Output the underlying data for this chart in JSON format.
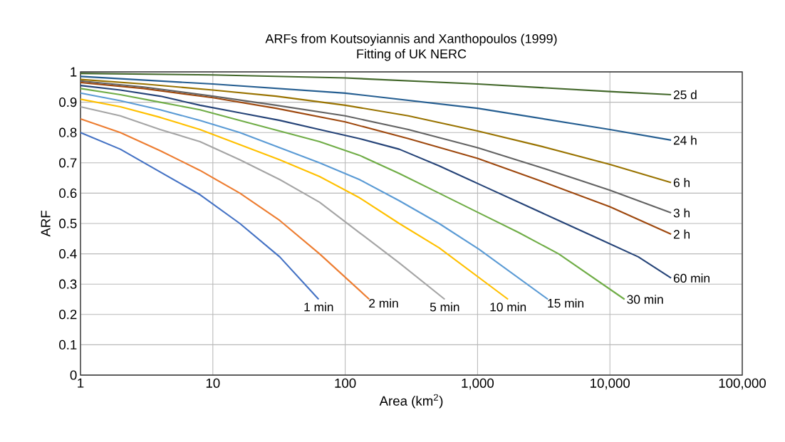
{
  "chart_data": {
    "type": "line",
    "title": "ARFs from Koutsoyiannis and Xanthopoulos (1999)",
    "subtitle": "Fitting of UK NERC",
    "xlabel": "Area (km$^{2}$)",
    "ylabel": "ARF",
    "log": "x",
    "grid": true,
    "legend": false,
    "marker": "none",
    "line_style": "solid",
    "xlim": [
      1,
      100000
    ],
    "ylim": [
      0,
      1
    ],
    "xticks": [
      1,
      10,
      100,
      {
        "value": 1000,
        "label": "1,000"
      },
      {
        "value": 10000,
        "label": "10,000"
      },
      {
        "value": 100000,
        "label": "100,000"
      }
    ],
    "yticks": [
      0,
      0.1,
      0.2,
      0.3,
      0.4,
      0.5,
      0.6,
      0.7,
      0.8,
      0.9,
      1
    ],
    "series": [
      {
        "name": "1 min",
        "color": "#4472c4",
        "x": [
          1,
          2,
          4,
          8,
          16,
          32,
          63
        ],
        "values": [
          0.8,
          0.745,
          0.67,
          0.595,
          0.5,
          0.39,
          0.25
        ]
      },
      {
        "name": "2 min",
        "color": "#ed7d31",
        "x": [
          1,
          2,
          4,
          8,
          16,
          32,
          64,
          152
        ],
        "values": [
          0.845,
          0.8,
          0.74,
          0.675,
          0.6,
          0.51,
          0.4,
          0.25
        ]
      },
      {
        "name": "5 min",
        "color": "#a5a5a5",
        "x": [
          1,
          2,
          4,
          8,
          16,
          32,
          64,
          128,
          256,
          565
        ],
        "values": [
          0.885,
          0.855,
          0.81,
          0.77,
          0.71,
          0.645,
          0.57,
          0.47,
          0.37,
          0.25
        ]
      },
      {
        "name": "10 min",
        "color": "#ffc000",
        "x": [
          1,
          2,
          4,
          8,
          16,
          32,
          64,
          128,
          256,
          512,
          1700
        ],
        "values": [
          0.91,
          0.885,
          0.85,
          0.81,
          0.76,
          0.71,
          0.655,
          0.585,
          0.5,
          0.42,
          0.25
        ]
      },
      {
        "name": "15 min",
        "color": "#5b9bd5",
        "x": [
          1,
          2,
          4,
          8,
          16,
          32,
          64,
          128,
          256,
          512,
          1024,
          3400
        ],
        "values": [
          0.93,
          0.905,
          0.875,
          0.84,
          0.8,
          0.75,
          0.7,
          0.645,
          0.575,
          0.5,
          0.415,
          0.25
        ]
      },
      {
        "name": "30 min",
        "color": "#70ad47",
        "x": [
          1,
          2,
          4,
          8,
          16,
          32,
          64,
          128,
          256,
          512,
          1024,
          2048,
          4096,
          12900
        ],
        "values": [
          0.945,
          0.925,
          0.9,
          0.875,
          0.84,
          0.805,
          0.77,
          0.725,
          0.665,
          0.6,
          0.535,
          0.47,
          0.4,
          0.25
        ]
      },
      {
        "name": "60 min",
        "color": "#264478",
        "x": [
          1,
          2,
          4,
          8,
          16,
          32,
          64,
          128,
          256,
          512,
          1024,
          2048,
          4096,
          8192,
          16384,
          29000
        ],
        "values": [
          0.955,
          0.94,
          0.92,
          0.89,
          0.865,
          0.84,
          0.81,
          0.78,
          0.745,
          0.69,
          0.63,
          0.57,
          0.51,
          0.45,
          0.39,
          0.32
        ]
      },
      {
        "name": "2 h",
        "color": "#9e480e",
        "x": [
          1,
          3,
          10,
          30,
          100,
          300,
          1000,
          3000,
          10000,
          29000
        ],
        "values": [
          0.965,
          0.945,
          0.915,
          0.88,
          0.835,
          0.78,
          0.715,
          0.64,
          0.555,
          0.465
        ]
      },
      {
        "name": "3 h",
        "color": "#636363",
        "x": [
          1,
          3,
          10,
          30,
          100,
          300,
          1000,
          3000,
          10000,
          29000
        ],
        "values": [
          0.97,
          0.95,
          0.92,
          0.89,
          0.855,
          0.81,
          0.75,
          0.685,
          0.61,
          0.535
        ]
      },
      {
        "name": "6 h",
        "color": "#997300",
        "x": [
          1,
          3,
          10,
          30,
          100,
          300,
          1000,
          3000,
          10000,
          29000
        ],
        "values": [
          0.975,
          0.96,
          0.94,
          0.92,
          0.89,
          0.855,
          0.805,
          0.755,
          0.695,
          0.635
        ]
      },
      {
        "name": "24 h",
        "color": "#255e91",
        "x": [
          1,
          10,
          100,
          1000,
          10000,
          29000
        ],
        "values": [
          0.985,
          0.96,
          0.93,
          0.88,
          0.81,
          0.775
        ]
      },
      {
        "name": "25 d",
        "color": "#43682b",
        "x": [
          1,
          10,
          100,
          1000,
          10000,
          29000
        ],
        "values": [
          0.995,
          0.99,
          0.98,
          0.96,
          0.935,
          0.925
        ]
      }
    ]
  }
}
